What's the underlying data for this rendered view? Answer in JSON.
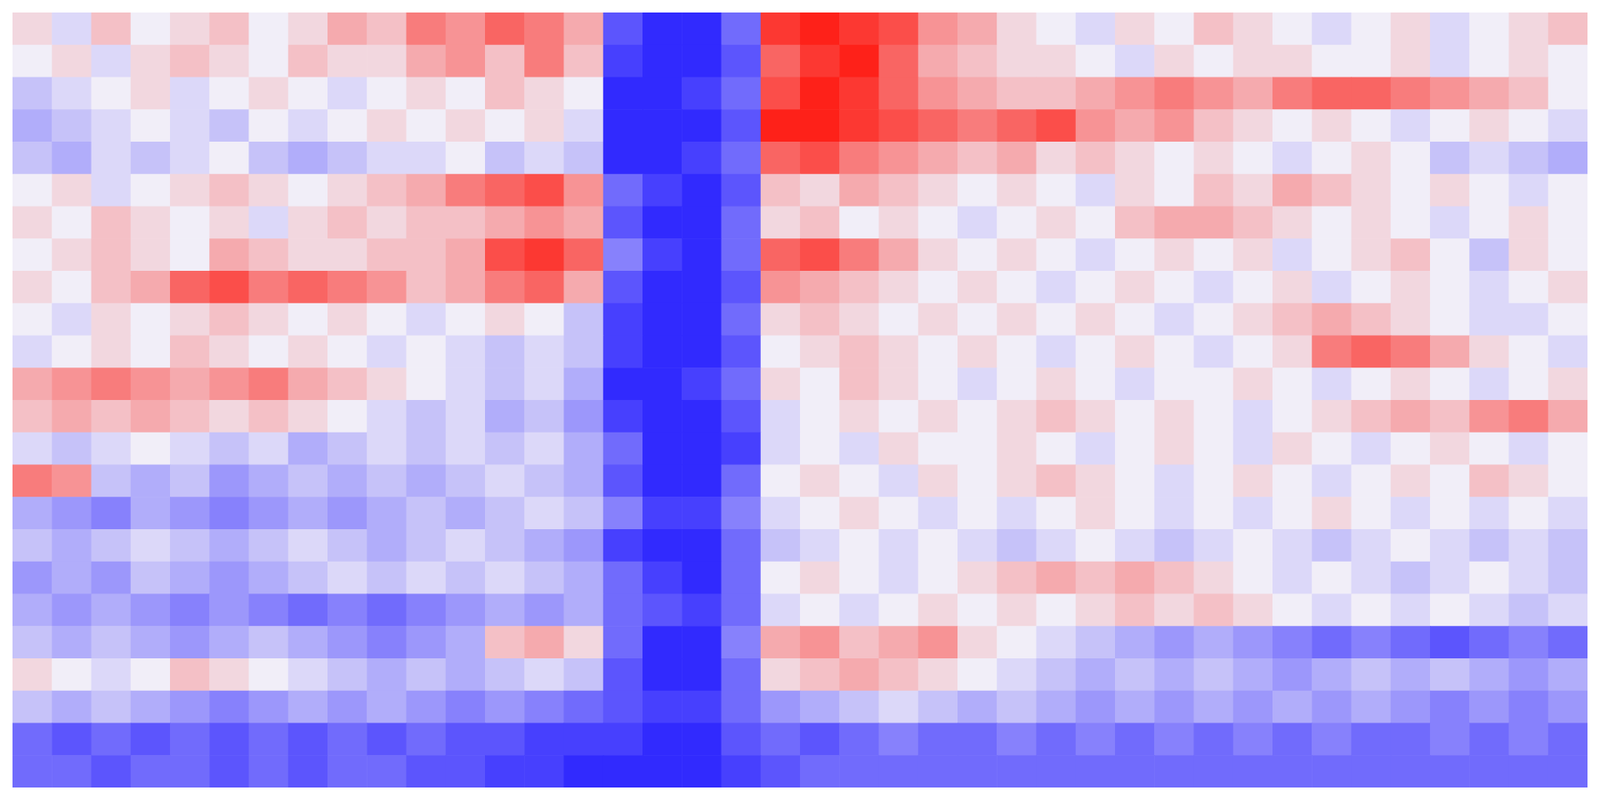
{
  "chart_data": {
    "type": "heatmap",
    "tick_labels": false,
    "zlim": [
      -10,
      10
    ],
    "values": [
      [
        1,
        -1,
        2,
        0,
        1,
        2,
        0,
        1,
        3,
        2,
        5,
        4,
        6,
        5,
        3,
        -7,
        -9,
        -9,
        -6,
        8,
        9,
        8,
        7,
        4,
        3,
        1,
        0,
        -1,
        1,
        0,
        2,
        1,
        0,
        -1,
        0,
        1,
        -1,
        0,
        1,
        2
      ],
      [
        0,
        1,
        -1,
        1,
        2,
        1,
        0,
        2,
        1,
        1,
        3,
        4,
        2,
        5,
        2,
        -8,
        -9,
        -9,
        -7,
        6,
        8,
        9,
        6,
        3,
        2,
        1,
        1,
        0,
        -1,
        1,
        0,
        1,
        1,
        0,
        0,
        1,
        -1,
        0,
        1,
        0
      ],
      [
        -2,
        -1,
        0,
        1,
        -1,
        0,
        1,
        0,
        -1,
        0,
        1,
        0,
        2,
        1,
        0,
        -9,
        -9,
        -8,
        -6,
        7,
        9,
        8,
        6,
        4,
        3,
        2,
        2,
        3,
        4,
        5,
        4,
        3,
        5,
        6,
        6,
        5,
        4,
        3,
        2,
        0
      ],
      [
        -3,
        -2,
        -1,
        0,
        -1,
        -2,
        0,
        -1,
        0,
        1,
        0,
        1,
        0,
        1,
        -1,
        -9,
        -9,
        -9,
        -7,
        9,
        9,
        8,
        7,
        6,
        5,
        6,
        7,
        4,
        3,
        4,
        2,
        1,
        0,
        1,
        0,
        -1,
        0,
        1,
        0,
        -1
      ],
      [
        -2,
        -3,
        -1,
        -2,
        -1,
        0,
        -2,
        -3,
        -2,
        -1,
        -1,
        0,
        -2,
        -1,
        -2,
        -9,
        -9,
        -8,
        -6,
        6,
        7,
        5,
        4,
        3,
        2,
        3,
        1,
        2,
        1,
        0,
        1,
        0,
        -1,
        0,
        1,
        0,
        -2,
        -1,
        -2,
        -3
      ],
      [
        0,
        1,
        -1,
        0,
        1,
        2,
        1,
        0,
        1,
        2,
        3,
        5,
        6,
        7,
        4,
        -6,
        -8,
        -9,
        -7,
        2,
        1,
        3,
        2,
        1,
        0,
        1,
        0,
        -1,
        1,
        0,
        2,
        1,
        3,
        2,
        1,
        0,
        1,
        0,
        -1,
        0
      ],
      [
        1,
        0,
        2,
        1,
        0,
        1,
        -1,
        1,
        2,
        1,
        2,
        2,
        3,
        4,
        3,
        -7,
        -9,
        -9,
        -6,
        1,
        2,
        0,
        1,
        0,
        -1,
        0,
        1,
        0,
        2,
        3,
        3,
        2,
        1,
        0,
        1,
        0,
        -1,
        0,
        1,
        0
      ],
      [
        0,
        1,
        2,
        1,
        0,
        3,
        2,
        1,
        1,
        2,
        2,
        3,
        7,
        8,
        6,
        -5,
        -8,
        -9,
        -6,
        6,
        7,
        5,
        3,
        1,
        0,
        1,
        0,
        -1,
        0,
        1,
        0,
        1,
        -1,
        0,
        1,
        2,
        0,
        -2,
        1,
        0
      ],
      [
        1,
        0,
        2,
        3,
        6,
        7,
        5,
        6,
        5,
        4,
        2,
        3,
        5,
        6,
        3,
        -7,
        -9,
        -9,
        -7,
        4,
        3,
        2,
        1,
        0,
        1,
        0,
        -1,
        0,
        1,
        0,
        -1,
        0,
        1,
        -1,
        0,
        1,
        0,
        -1,
        0,
        1
      ],
      [
        0,
        -1,
        1,
        0,
        1,
        2,
        1,
        0,
        1,
        0,
        -1,
        0,
        1,
        0,
        -2,
        -8,
        -9,
        -9,
        -6,
        1,
        2,
        1,
        0,
        1,
        0,
        1,
        0,
        1,
        0,
        -1,
        0,
        1,
        2,
        3,
        2,
        1,
        0,
        -1,
        -1,
        0
      ],
      [
        -1,
        0,
        1,
        0,
        2,
        1,
        0,
        1,
        0,
        -1,
        0,
        -1,
        -2,
        -1,
        -2,
        -8,
        -9,
        -9,
        -7,
        0,
        1,
        2,
        1,
        0,
        1,
        0,
        -1,
        0,
        1,
        0,
        -1,
        0,
        1,
        5,
        6,
        5,
        3,
        1,
        0,
        -1
      ],
      [
        3,
        4,
        5,
        4,
        3,
        4,
        5,
        3,
        2,
        1,
        0,
        -1,
        -2,
        -1,
        -3,
        -9,
        -9,
        -8,
        -6,
        1,
        0,
        2,
        1,
        0,
        -1,
        0,
        1,
        0,
        -1,
        0,
        0,
        1,
        0,
        -1,
        0,
        1,
        0,
        -1,
        0,
        1
      ],
      [
        2,
        3,
        2,
        3,
        2,
        1,
        2,
        1,
        0,
        -1,
        -2,
        -1,
        -3,
        -2,
        -4,
        -8,
        -9,
        -9,
        -7,
        -1,
        0,
        1,
        0,
        1,
        0,
        1,
        2,
        1,
        0,
        1,
        0,
        -1,
        0,
        1,
        2,
        3,
        2,
        4,
        5,
        3
      ],
      [
        -1,
        -2,
        -1,
        0,
        -1,
        -2,
        -1,
        -3,
        -2,
        -1,
        -2,
        -1,
        -2,
        -1,
        -3,
        -6,
        -9,
        -9,
        -8,
        -1,
        0,
        -1,
        1,
        0,
        0,
        1,
        0,
        -1,
        0,
        1,
        0,
        -1,
        1,
        0,
        -1,
        0,
        1,
        0,
        -1,
        0
      ],
      [
        5,
        4,
        -2,
        -3,
        -2,
        -4,
        -3,
        -2,
        -3,
        -2,
        -3,
        -2,
        -1,
        -2,
        -3,
        -7,
        -9,
        -9,
        -6,
        0,
        1,
        0,
        -1,
        1,
        0,
        1,
        2,
        1,
        0,
        -1,
        0,
        1,
        0,
        -1,
        0,
        1,
        0,
        2,
        1,
        0
      ],
      [
        -3,
        -4,
        -5,
        -3,
        -4,
        -5,
        -4,
        -3,
        -4,
        -3,
        -2,
        -3,
        -2,
        -1,
        -2,
        -5,
        -8,
        -8,
        -5,
        -1,
        0,
        1,
        0,
        -1,
        0,
        -1,
        0,
        1,
        0,
        -1,
        0,
        -1,
        0,
        1,
        0,
        -1,
        0,
        -1,
        0,
        -1
      ],
      [
        -2,
        -3,
        -2,
        -1,
        -2,
        -3,
        -2,
        -1,
        -2,
        -3,
        -2,
        -1,
        -2,
        -3,
        -4,
        -8,
        -9,
        -9,
        -6,
        -2,
        -1,
        0,
        -1,
        0,
        -1,
        -2,
        -1,
        0,
        -1,
        -2,
        -1,
        0,
        -1,
        -2,
        -1,
        0,
        -1,
        -2,
        -1,
        -2
      ],
      [
        -4,
        -3,
        -4,
        -2,
        -3,
        -4,
        -3,
        -2,
        -1,
        -2,
        -1,
        -2,
        -1,
        -2,
        -3,
        -6,
        -8,
        -9,
        -6,
        0,
        1,
        0,
        -1,
        0,
        1,
        2,
        3,
        2,
        3,
        2,
        1,
        0,
        -1,
        0,
        -1,
        -2,
        -1,
        0,
        -1,
        -2
      ],
      [
        -3,
        -4,
        -3,
        -4,
        -5,
        -4,
        -5,
        -6,
        -5,
        -6,
        -5,
        -4,
        -3,
        -4,
        -3,
        -6,
        -7,
        -8,
        -6,
        -1,
        0,
        -1,
        0,
        1,
        0,
        1,
        0,
        1,
        2,
        1,
        2,
        1,
        0,
        -1,
        0,
        -1,
        0,
        -1,
        -2,
        -1
      ],
      [
        -2,
        -3,
        -2,
        -3,
        -4,
        -3,
        -2,
        -3,
        -4,
        -5,
        -4,
        -3,
        2,
        3,
        1,
        -6,
        -9,
        -9,
        -5,
        3,
        4,
        2,
        3,
        4,
        1,
        0,
        -1,
        -2,
        -3,
        -4,
        -3,
        -4,
        -5,
        -6,
        -5,
        -6,
        -7,
        -6,
        -5,
        -6
      ],
      [
        1,
        0,
        -1,
        0,
        2,
        1,
        0,
        -1,
        -2,
        -3,
        -2,
        -3,
        -2,
        -1,
        -2,
        -7,
        -9,
        -9,
        -6,
        1,
        2,
        3,
        2,
        1,
        0,
        -1,
        -2,
        -3,
        -2,
        -3,
        -2,
        -3,
        -4,
        -3,
        -2,
        -3,
        -2,
        -3,
        -4,
        -3
      ],
      [
        -2,
        -3,
        -2,
        -3,
        -4,
        -5,
        -4,
        -3,
        -4,
        -3,
        -4,
        -5,
        -4,
        -5,
        -6,
        -7,
        -8,
        -8,
        -6,
        -4,
        -3,
        -2,
        -1,
        -2,
        -3,
        -2,
        -3,
        -4,
        -3,
        -4,
        -3,
        -4,
        -3,
        -4,
        -3,
        -4,
        -5,
        -4,
        -5,
        -4
      ],
      [
        -6,
        -7,
        -6,
        -7,
        -6,
        -7,
        -6,
        -7,
        -6,
        -7,
        -6,
        -7,
        -7,
        -8,
        -8,
        -8,
        -9,
        -9,
        -7,
        -6,
        -7,
        -6,
        -5,
        -6,
        -6,
        -5,
        -6,
        -5,
        -6,
        -5,
        -6,
        -5,
        -6,
        -5,
        -6,
        -6,
        -5,
        -6,
        -5,
        -6
      ],
      [
        -6,
        -6,
        -7,
        -6,
        -6,
        -7,
        -6,
        -7,
        -6,
        -6,
        -7,
        -7,
        -8,
        -8,
        -9,
        -9,
        -9,
        -9,
        -8,
        -7,
        -6,
        -6,
        -6,
        -6,
        -6,
        -6,
        -6,
        -6,
        -6,
        -6,
        -6,
        -6,
        -6,
        -6,
        -6,
        -6,
        -6,
        -6,
        -6,
        -6
      ]
    ]
  }
}
